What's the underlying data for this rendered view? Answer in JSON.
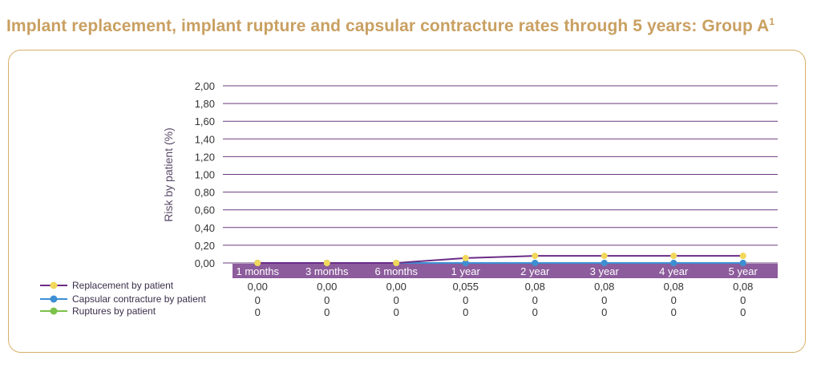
{
  "chart_data": {
    "type": "line",
    "title": "Implant replacement, implant rupture and capsular contracture rates through 5 years: Group A",
    "title_superscript": "1",
    "ylabel": "Risk by patient (%)",
    "xlabel": "",
    "ylim": [
      0,
      2
    ],
    "yticks": [
      "2,00",
      "1,80",
      "1,60",
      "1,40",
      "1,20",
      "1,00",
      "0,80",
      "0,60",
      "0,40",
      "0,20",
      "0,00"
    ],
    "categories": [
      "1 months",
      "3 months",
      "6 months",
      "1 year",
      "2 year",
      "3 year",
      "4 year",
      "5 year"
    ],
    "grid": true,
    "series": [
      {
        "name": "Replacement by patient",
        "color": "#f2d85a",
        "line_color": "#6a2c86",
        "values": [
          0,
          0,
          0,
          0.055,
          0.08,
          0.08,
          0.08,
          0.08
        ],
        "labels": [
          "0,00",
          "0,00",
          "0,00",
          "0,055",
          "0,08",
          "0,08",
          "0,08",
          "0,08"
        ]
      },
      {
        "name": "Capsular contracture by patient",
        "color": "#3d8fd4",
        "line_color": "#3d8fd4",
        "values": [
          0,
          0,
          0,
          0,
          0,
          0,
          0,
          0
        ],
        "labels": [
          "0",
          "0",
          "0",
          "0",
          "0",
          "0",
          "0",
          "0"
        ]
      },
      {
        "name": "Ruptures by patient",
        "color": "#7cc24a",
        "line_color": "#7cc24a",
        "values": [
          0,
          0,
          0,
          0,
          0,
          0,
          0,
          0
        ],
        "labels": [
          "0",
          "0",
          "0",
          "0",
          "0",
          "0",
          "0",
          "0"
        ]
      }
    ]
  }
}
